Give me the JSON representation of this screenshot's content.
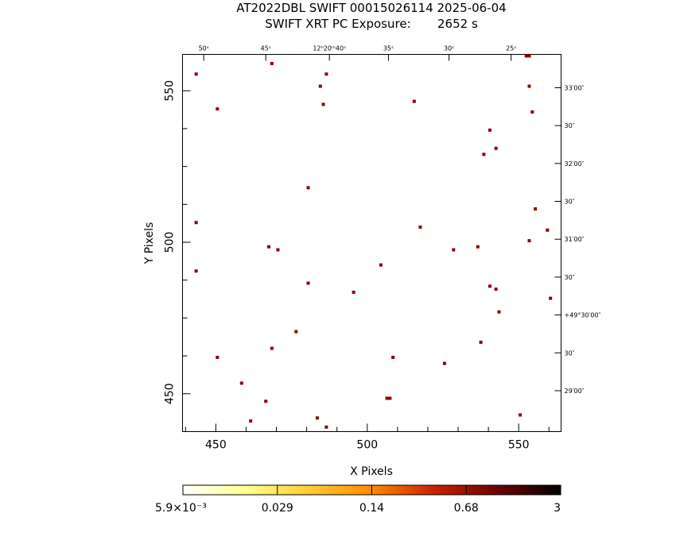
{
  "header": {
    "line1": "AT2022DBL SWIFT 00015026114 2025-06-04",
    "line2": "SWIFT XRT PC Exposure:       2652 s"
  },
  "chart_data": {
    "type": "scatter",
    "title": "AT2022DBL SWIFT 00015026114 2025-06-04",
    "subtitle": "SWIFT XRT PC Exposure:       2652 s",
    "xlabel": "X Pixels",
    "ylabel": "Y Pixels",
    "xlim": [
      439,
      564
    ],
    "ylim": [
      437.5,
      562
    ],
    "x_ticks": [
      450,
      500,
      550
    ],
    "y_ticks": [
      450,
      500,
      550
    ],
    "x_minor_step": 10,
    "y_minor_step": 12.5,
    "top_ra_labels": [
      {
        "x": 446,
        "text": "50ˢ"
      },
      {
        "x": 466.5,
        "text": "45ˢ"
      },
      {
        "x": 487.5,
        "text": "12ʰ20ᵐ40ˢ"
      },
      {
        "x": 507,
        "text": "35ˢ"
      },
      {
        "x": 527,
        "text": "30ˢ"
      },
      {
        "x": 547.5,
        "text": "25ˢ"
      }
    ],
    "right_dec_labels": [
      {
        "y": 551,
        "text": "33′00″"
      },
      {
        "y": 538.5,
        "text": "30″"
      },
      {
        "y": 526,
        "text": "32′00″"
      },
      {
        "y": 513.5,
        "text": "30″"
      },
      {
        "y": 501,
        "text": "31′00″"
      },
      {
        "y": 488.5,
        "text": "30″"
      },
      {
        "y": 476,
        "text": "+49°30′00″"
      },
      {
        "y": 463.5,
        "text": "30″"
      },
      {
        "y": 451,
        "text": "29′00″"
      }
    ],
    "points": [
      {
        "x": 443.5,
        "y": 555.5
      },
      {
        "x": 468.5,
        "y": 559
      },
      {
        "x": 486.5,
        "y": 555.5
      },
      {
        "x": 484.5,
        "y": 551.5
      },
      {
        "x": 485.5,
        "y": 545.5
      },
      {
        "x": 450.5,
        "y": 544
      },
      {
        "x": 515.5,
        "y": 546.5
      },
      {
        "x": 553.5,
        "y": 561.5
      },
      {
        "x": 552.5,
        "y": 561.5
      },
      {
        "x": 553.5,
        "y": 551.5
      },
      {
        "x": 554.5,
        "y": 543
      },
      {
        "x": 540.5,
        "y": 537
      },
      {
        "x": 542.5,
        "y": 531
      },
      {
        "x": 538.5,
        "y": 529
      },
      {
        "x": 480.5,
        "y": 518
      },
      {
        "x": 555.5,
        "y": 511
      },
      {
        "x": 443.5,
        "y": 506.5
      },
      {
        "x": 517.5,
        "y": 505
      },
      {
        "x": 559.5,
        "y": 504
      },
      {
        "x": 553.5,
        "y": 500.5
      },
      {
        "x": 467.5,
        "y": 498.5
      },
      {
        "x": 470.5,
        "y": 497.5
      },
      {
        "x": 528.5,
        "y": 497.5
      },
      {
        "x": 536.5,
        "y": 498.5
      },
      {
        "x": 504.5,
        "y": 492.5
      },
      {
        "x": 443.5,
        "y": 490.5
      },
      {
        "x": 480.5,
        "y": 486.5
      },
      {
        "x": 540.5,
        "y": 485.5
      },
      {
        "x": 542.5,
        "y": 484.5
      },
      {
        "x": 495.5,
        "y": 483.5
      },
      {
        "x": 560.5,
        "y": 481.5
      },
      {
        "x": 543.5,
        "y": 477
      },
      {
        "x": 476.5,
        "y": 470.5
      },
      {
        "x": 537.5,
        "y": 467
      },
      {
        "x": 468.5,
        "y": 465
      },
      {
        "x": 450.5,
        "y": 462
      },
      {
        "x": 508.5,
        "y": 462
      },
      {
        "x": 525.5,
        "y": 460
      },
      {
        "x": 458.5,
        "y": 453.5
      },
      {
        "x": 506.5,
        "y": 448.5
      },
      {
        "x": 507.5,
        "y": 448.5
      },
      {
        "x": 466.5,
        "y": 447.5
      },
      {
        "x": 550.5,
        "y": 443
      },
      {
        "x": 483.5,
        "y": 442
      },
      {
        "x": 461.5,
        "y": 441
      },
      {
        "x": 486.5,
        "y": 439
      }
    ],
    "point_color": "#8b0000",
    "grid": false,
    "colorbar": {
      "tick_labels": [
        "5.9×10⁻³",
        "0.029",
        "0.14",
        "0.68",
        "3"
      ],
      "colors": [
        "#ffffff",
        "#ffff90",
        "#ffcc33",
        "#ff8a00",
        "#c82000",
        "#6a0000",
        "#000000"
      ]
    }
  }
}
